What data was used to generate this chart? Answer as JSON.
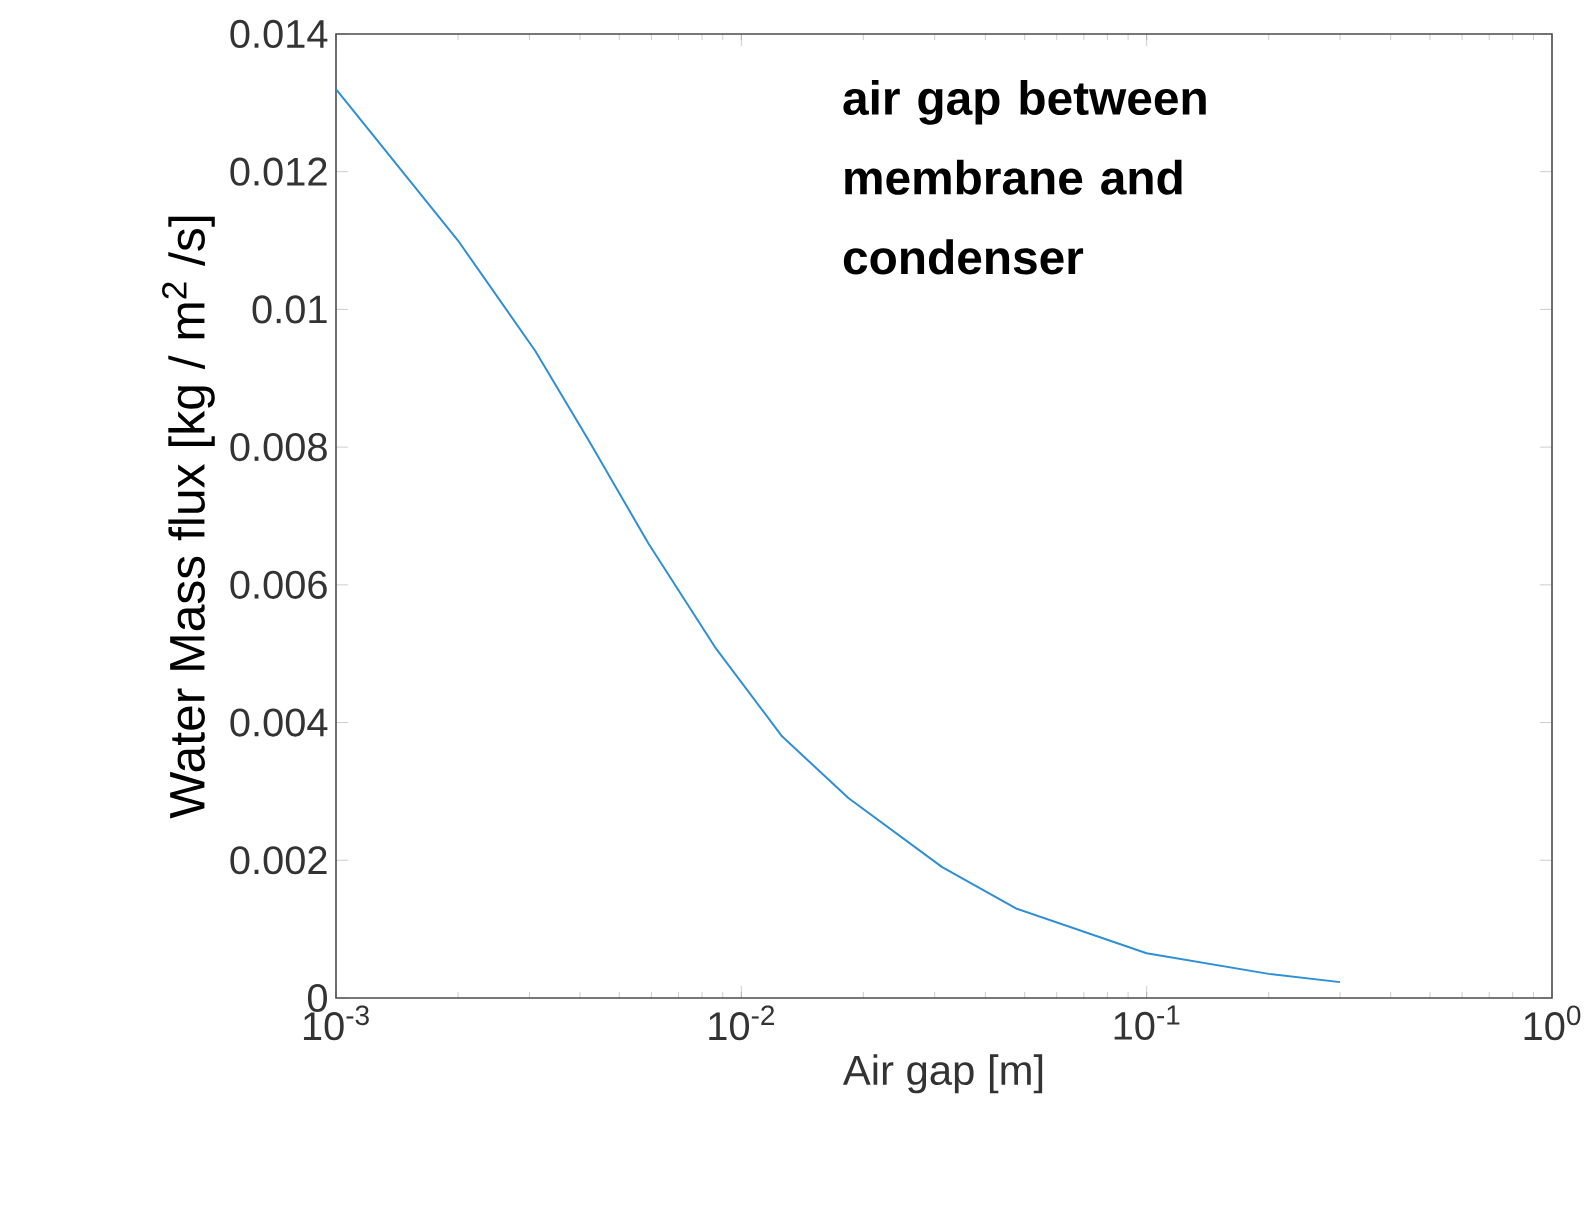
{
  "chart_data": {
    "type": "line",
    "xlabel": "Air gap [m]",
    "ylabel": "Water  Mass flux [kg / m$^{2}$ /s]",
    "annotations": [
      "air gap between membrane and condenser"
    ],
    "x": [
      0.001,
      0.002,
      0.0031,
      0.0042,
      0.0059,
      0.0086,
      0.0126,
      0.0184,
      0.0313,
      0.0476,
      0.1,
      0.2,
      0.3
    ],
    "values": [
      0.0132,
      0.011,
      0.0094,
      0.0081,
      0.0066,
      0.0051,
      0.0038,
      0.0029,
      0.0019,
      0.0013,
      0.00065,
      0.00035,
      0.00023
    ],
    "color": "#2e8fd6",
    "log": "x",
    "xlim": [
      0.001,
      1
    ],
    "ylim": [
      0,
      0.014
    ],
    "xticks": [
      {
        "value": 0.001,
        "label": "10$^{-3}$"
      },
      {
        "value": 0.01,
        "label": "10$^{-2}$"
      },
      {
        "value": 0.1,
        "label": "10$^{-1}$"
      },
      {
        "value": 1,
        "label": "10$^{0}$"
      }
    ],
    "yticks": [
      0,
      0.002,
      0.004,
      0.006,
      0.008,
      0.01,
      0.012,
      0.014
    ]
  }
}
